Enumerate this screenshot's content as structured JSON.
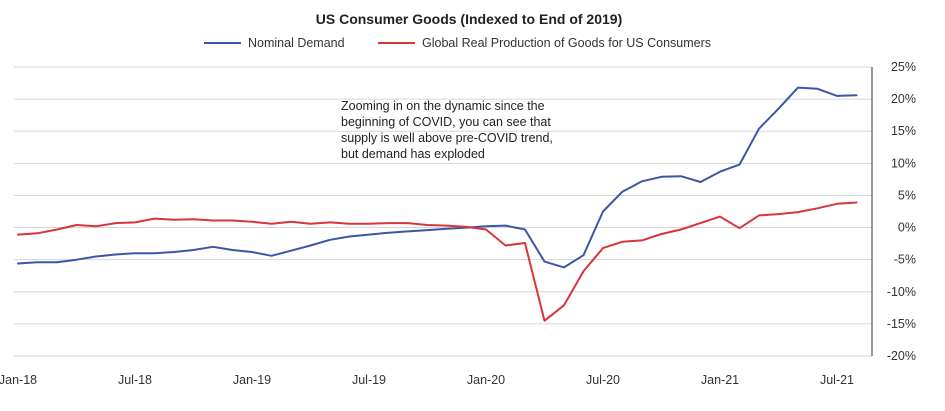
{
  "chart_data": {
    "type": "line",
    "title": "US Consumer Goods (Indexed to End of 2019)",
    "x_tick_labels": [
      "Jan-18",
      "Jul-18",
      "Jan-19",
      "Jul-19",
      "Jan-20",
      "Jul-20",
      "Jan-21",
      "Jul-21"
    ],
    "y_tick_labels": [
      "25%",
      "20%",
      "15%",
      "10%",
      "5%",
      "0%",
      "-5%",
      "-10%",
      "-15%",
      "-20%"
    ],
    "ylim": [
      -20,
      25
    ],
    "y_unit": "%",
    "x_months_range": [
      "Jan-18",
      "Jul-21"
    ],
    "grid": "horizontal",
    "legend_position": "top",
    "series": [
      {
        "name": "Nominal Demand",
        "color": "#3a57a7",
        "x": [
          "Jan-18",
          "Feb-18",
          "Mar-18",
          "Apr-18",
          "May-18",
          "Jun-18",
          "Jul-18",
          "Aug-18",
          "Sep-18",
          "Oct-18",
          "Nov-18",
          "Dec-18",
          "Jan-19",
          "Feb-19",
          "Mar-19",
          "Apr-19",
          "May-19",
          "Jun-19",
          "Jul-19",
          "Aug-19",
          "Sep-19",
          "Oct-19",
          "Nov-19",
          "Dec-19",
          "Jan-20",
          "Feb-20",
          "Mar-20",
          "Apr-20",
          "May-20",
          "Jun-20",
          "Jul-20",
          "Aug-20",
          "Sep-20",
          "Oct-20",
          "Nov-20",
          "Dec-20",
          "Jan-21",
          "Feb-21",
          "Mar-21",
          "Apr-21",
          "May-21",
          "Jun-21",
          "Jul-21",
          "Aug-21"
        ],
        "values": [
          -5.6,
          -5.4,
          -5.4,
          -5.0,
          -4.5,
          -4.2,
          -4.0,
          -4.0,
          -3.8,
          -3.5,
          -3.0,
          -3.5,
          -3.8,
          -4.4,
          -3.6,
          -2.8,
          -1.9,
          -1.4,
          -1.1,
          -0.8,
          -0.6,
          -0.4,
          -0.2,
          0.0,
          0.2,
          0.3,
          -0.3,
          -5.3,
          -6.2,
          -4.3,
          2.5,
          5.6,
          7.2,
          7.9,
          8.0,
          7.1,
          8.7,
          9.8,
          15.4,
          18.5,
          21.8,
          21.6,
          20.5,
          20.6
        ]
      },
      {
        "name": "Global Real Production of Goods for US Consumers",
        "color": "#d9343b",
        "x": [
          "Jan-18",
          "Feb-18",
          "Mar-18",
          "Apr-18",
          "May-18",
          "Jun-18",
          "Jul-18",
          "Aug-18",
          "Sep-18",
          "Oct-18",
          "Nov-18",
          "Dec-18",
          "Jan-19",
          "Feb-19",
          "Mar-19",
          "Apr-19",
          "May-19",
          "Jun-19",
          "Jul-19",
          "Aug-19",
          "Sep-19",
          "Oct-19",
          "Nov-19",
          "Dec-19",
          "Jan-20",
          "Feb-20",
          "Mar-20",
          "Apr-20",
          "May-20",
          "Jun-20",
          "Jul-20",
          "Aug-20",
          "Sep-20",
          "Oct-20",
          "Nov-20",
          "Dec-20",
          "Jan-21",
          "Feb-21",
          "Mar-21",
          "Apr-21",
          "May-21",
          "Jun-21",
          "Jul-21",
          "Aug-21"
        ],
        "values": [
          -1.1,
          -0.9,
          -0.3,
          0.4,
          0.2,
          0.7,
          0.8,
          1.4,
          1.2,
          1.3,
          1.1,
          1.1,
          0.9,
          0.6,
          0.9,
          0.6,
          0.8,
          0.6,
          0.6,
          0.7,
          0.7,
          0.4,
          0.3,
          0.1,
          -0.3,
          -2.8,
          -2.4,
          -14.5,
          -12.1,
          -6.8,
          -3.2,
          -2.2,
          -2.0,
          -1.0,
          -0.3,
          0.7,
          1.7,
          -0.1,
          1.9,
          2.1,
          2.4,
          3.0,
          3.7,
          3.9
        ]
      }
    ],
    "annotation": [
      "Zooming in on the dynamic since the",
      "beginning of COVID, you can see that",
      "supply is well above pre-COVID trend,",
      "but demand has exploded"
    ]
  }
}
